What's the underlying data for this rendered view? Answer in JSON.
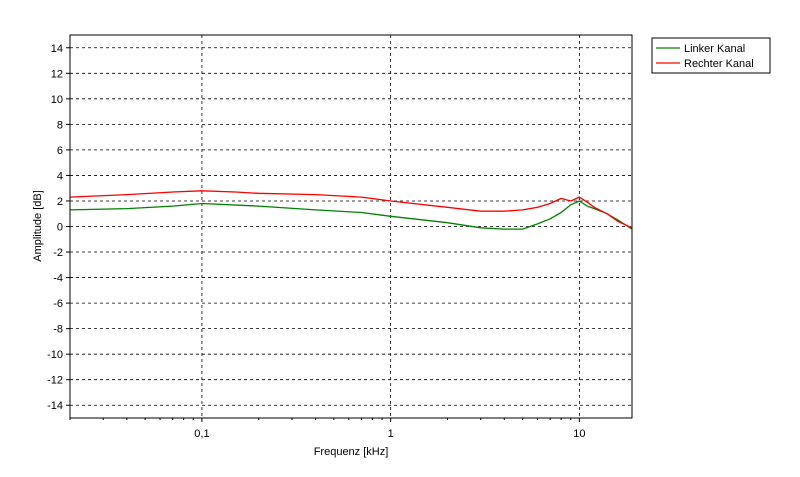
{
  "chart_data": {
    "type": "line",
    "xlabel": "Frequenz [kHz]",
    "ylabel": "Amplitude [dB]",
    "xscale": "log",
    "xlim": [
      0.02,
      19
    ],
    "ylim": [
      -15,
      15
    ],
    "x_ticks": [
      {
        "value": 0.1,
        "label": "0,1"
      },
      {
        "value": 1,
        "label": "1"
      },
      {
        "value": 10,
        "label": "10"
      }
    ],
    "y_ticks": [
      14,
      12,
      10,
      8,
      6,
      4,
      2,
      0,
      -2,
      -4,
      -6,
      -8,
      -10,
      -12,
      -14
    ],
    "grid": true,
    "legend_position": "top-right",
    "series": [
      {
        "name": "Linker Kanal",
        "color": "#008000",
        "x": [
          0.02,
          0.04,
          0.07,
          0.1,
          0.2,
          0.4,
          0.7,
          1,
          2,
          3,
          4,
          5,
          6,
          7,
          8,
          9,
          10,
          11,
          12,
          14,
          16,
          19
        ],
        "y": [
          1.3,
          1.4,
          1.6,
          1.8,
          1.6,
          1.3,
          1.1,
          0.8,
          0.3,
          -0.1,
          -0.2,
          -0.2,
          0.2,
          0.6,
          1.1,
          1.7,
          2.0,
          1.6,
          1.4,
          1.0,
          0.5,
          -0.2
        ]
      },
      {
        "name": "Rechter Kanal",
        "color": "#ff0000",
        "x": [
          0.02,
          0.04,
          0.07,
          0.1,
          0.15,
          0.2,
          0.4,
          0.7,
          1,
          2,
          3,
          4,
          5,
          6,
          7,
          8,
          9,
          10,
          11,
          12,
          14,
          16,
          19
        ],
        "y": [
          2.3,
          2.5,
          2.7,
          2.8,
          2.7,
          2.6,
          2.5,
          2.3,
          2.0,
          1.5,
          1.2,
          1.2,
          1.3,
          1.5,
          1.8,
          2.2,
          2.0,
          2.3,
          1.9,
          1.5,
          1.0,
          0.4,
          -0.1
        ]
      }
    ]
  }
}
